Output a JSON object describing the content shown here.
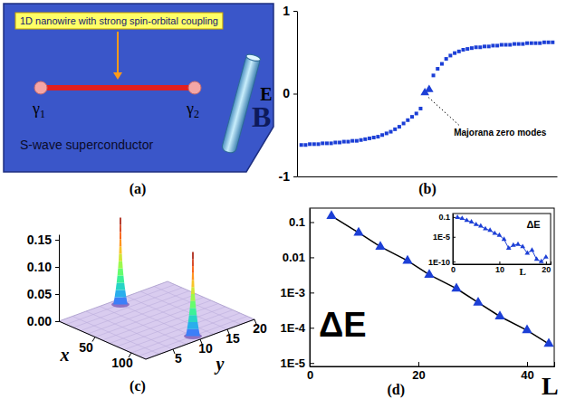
{
  "diagram": {
    "label": "(a)",
    "wire_label": "1D nanowire with strong spin-orbital coupling",
    "ends": [
      "γ1",
      "γ2"
    ],
    "substrate_label": "S-wave superconductor",
    "field_label": "B"
  },
  "chart_data": [
    {
      "panel_label": "(b)",
      "type": "scatter",
      "y_label": "E",
      "xlim": [
        0,
        61
      ],
      "ylim": [
        -1,
        1
      ],
      "yticks": [
        -1,
        0,
        1
      ],
      "tick_labels": "y",
      "series": [
        {
          "x": [
            1,
            2,
            3,
            4,
            5,
            6,
            7,
            8,
            9,
            10,
            11,
            12,
            13,
            14,
            15,
            16,
            17,
            18,
            19,
            20,
            21,
            22,
            23,
            24,
            25,
            26,
            27,
            28,
            29,
            32,
            33,
            34,
            35,
            36,
            37,
            38,
            39,
            40,
            41,
            42,
            43,
            44,
            45,
            46,
            47,
            48,
            49,
            50,
            51,
            52,
            53,
            54,
            55,
            56,
            57,
            58,
            59,
            60
          ],
          "values": [
            -0.62,
            -0.62,
            -0.61,
            -0.61,
            -0.61,
            -0.6,
            -0.6,
            -0.6,
            -0.59,
            -0.59,
            -0.58,
            -0.58,
            -0.57,
            -0.57,
            -0.56,
            -0.55,
            -0.54,
            -0.53,
            -0.52,
            -0.5,
            -0.48,
            -0.46,
            -0.43,
            -0.4,
            -0.36,
            -0.32,
            -0.28,
            -0.24,
            -0.18,
            0.22,
            0.3,
            0.36,
            0.42,
            0.46,
            0.49,
            0.51,
            0.53,
            0.54,
            0.55,
            0.56,
            0.56,
            0.57,
            0.57,
            0.58,
            0.58,
            0.59,
            0.59,
            0.59,
            0.6,
            0.6,
            0.6,
            0.61,
            0.61,
            0.61,
            0.61,
            0.62,
            0.62,
            0.62
          ],
          "color": "#1c3fd6",
          "marker": "square"
        },
        {
          "x": [
            30,
            31
          ],
          "values": [
            0.01,
            0.05
          ],
          "color": "#1c3fd6",
          "marker": "triangle"
        }
      ],
      "annotations": [
        {
          "text": "Majorana zero modes",
          "x": 30,
          "y": 0.01
        }
      ]
    },
    {
      "panel_label": "(c)",
      "type": "surface3d",
      "x_label": "x",
      "y_label": "y",
      "xlim": [
        0,
        120
      ],
      "ylim": [
        0,
        20
      ],
      "zlim": [
        0,
        0.16
      ],
      "xticks": [
        50,
        100
      ],
      "yticks": [
        5,
        10,
        15,
        20
      ],
      "zticks": [
        {
          "value": 0,
          "label": "0.00"
        },
        {
          "value": 0.05,
          "label": "0.05"
        },
        {
          "value": 0.1,
          "label": "0.10"
        },
        {
          "value": 0.15,
          "label": "0.15"
        }
      ],
      "x": [
        10,
        110
      ],
      "y": [
        10,
        10
      ],
      "z": [
        0.16,
        0.155
      ]
    },
    {
      "panel_label": "(d)",
      "type": "line",
      "x_label": "L",
      "y_label": "ΔE",
      "log": "y",
      "xlim": [
        0,
        45
      ],
      "ylim": [
        8e-06,
        0.25
      ],
      "xticks": [
        0,
        20,
        40
      ],
      "yticks": [
        {
          "value": 1e-05,
          "label": "1E-5"
        },
        {
          "value": 0.0001,
          "label": "1E-4"
        },
        {
          "value": 0.001,
          "label": "1E-3"
        },
        0.01,
        0.1
      ],
      "series": [
        {
          "x": [
            4,
            9,
            13,
            18,
            22,
            27,
            31,
            35,
            40,
            44
          ],
          "values": [
            0.15,
            0.05,
            0.02,
            0.008,
            0.0032,
            0.0013,
            0.00052,
            0.00021,
            8.5e-05,
            3.5e-05
          ],
          "color": "#1c3fd6",
          "marker": "triangle",
          "line_style": "solid"
        }
      ]
    },
    {
      "type": "line",
      "x_label": "L",
      "y_label": "ΔE",
      "log": "y",
      "xlim": [
        0,
        21
      ],
      "ylim": [
        3e-11,
        0.5
      ],
      "xticks": [
        0,
        10,
        20
      ],
      "yticks": [
        0.1,
        {
          "value": 1e-05,
          "label": "1E-5"
        },
        {
          "value": 1e-10,
          "label": "1E-10"
        }
      ],
      "series": [
        {
          "x": [
            1,
            2,
            3,
            4,
            5,
            6,
            7,
            8,
            9,
            10,
            11,
            12,
            13,
            14,
            15,
            16,
            17,
            18,
            19,
            20
          ],
          "values": [
            0.08,
            0.05,
            0.02,
            0.01,
            0.003,
            0.0015,
            0.0004,
            0.0002,
            5e-05,
            2e-05,
            3e-06,
            5e-08,
            2e-07,
            3e-07,
            1e-07,
            5e-09,
            2e-08,
            3e-10,
            1e-10,
            8e-10
          ],
          "color": "#1c3fd6",
          "marker": "triangle",
          "line_style": "solid"
        }
      ]
    }
  ]
}
